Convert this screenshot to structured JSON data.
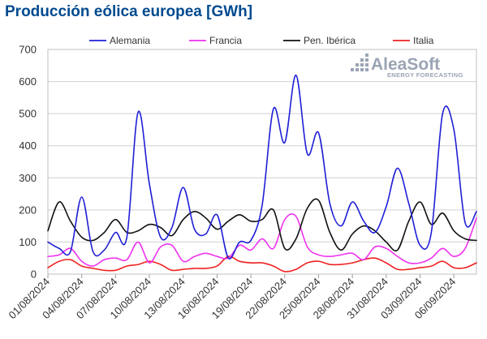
{
  "chart_data": {
    "type": "line",
    "title": "Producción eólica europea [GWh]",
    "xlabel": "",
    "ylabel": "",
    "ylim": [
      0,
      700
    ],
    "yticks": [
      "0",
      "100",
      "200",
      "300",
      "400",
      "500",
      "600",
      "700"
    ],
    "grid": true,
    "legend_position": "top",
    "x": [
      "01/08/2024",
      "02/08/2024",
      "03/08/2024",
      "04/08/2024",
      "05/08/2024",
      "06/08/2024",
      "07/08/2024",
      "08/08/2024",
      "09/08/2024",
      "10/08/2024",
      "11/08/2024",
      "12/08/2024",
      "13/08/2024",
      "14/08/2024",
      "15/08/2024",
      "16/08/2024",
      "17/08/2024",
      "18/08/2024",
      "19/08/2024",
      "20/08/2024",
      "21/08/2024",
      "22/08/2024",
      "23/08/2024",
      "24/08/2024",
      "25/08/2024",
      "26/08/2024",
      "27/08/2024",
      "28/08/2024",
      "29/08/2024",
      "30/08/2024",
      "31/08/2024",
      "01/09/2024",
      "02/09/2024",
      "03/09/2024",
      "04/09/2024",
      "05/09/2024",
      "06/09/2024",
      "07/09/2024",
      "08/09/2024"
    ],
    "x_tick_labels": [
      "01/08/2024",
      "04/08/2024",
      "07/08/2024",
      "10/08/2024",
      "13/08/2024",
      "16/08/2024",
      "19/08/2024",
      "22/08/2024",
      "25/08/2024",
      "28/08/2024",
      "31/08/2024",
      "03/09/2024",
      "06/09/2024"
    ],
    "series": [
      {
        "name": "Alemania",
        "color": "#1f1fd6",
        "values": [
          100,
          80,
          70,
          240,
          70,
          75,
          130,
          115,
          505,
          280,
          115,
          145,
          270,
          140,
          125,
          185,
          50,
          100,
          105,
          215,
          515,
          410,
          620,
          375,
          440,
          220,
          150,
          225,
          165,
          130,
          210,
          330,
          220,
          90,
          130,
          500,
          450,
          160,
          195
        ]
      },
      {
        "name": "Francia",
        "color": "#ee33ee",
        "values": [
          55,
          60,
          80,
          40,
          25,
          45,
          50,
          45,
          100,
          35,
          85,
          90,
          40,
          55,
          65,
          55,
          50,
          90,
          75,
          110,
          80,
          170,
          180,
          85,
          60,
          55,
          60,
          65,
          45,
          85,
          80,
          55,
          35,
          35,
          50,
          80,
          55,
          80,
          175
        ]
      },
      {
        "name": "Pen. Ibérica",
        "color": "#111111",
        "values": [
          135,
          225,
          165,
          115,
          105,
          130,
          170,
          130,
          135,
          155,
          145,
          120,
          170,
          195,
          175,
          140,
          165,
          185,
          165,
          170,
          200,
          80,
          110,
          205,
          230,
          130,
          75,
          125,
          150,
          135,
          100,
          75,
          165,
          225,
          155,
          190,
          135,
          110,
          105
        ]
      },
      {
        "name": "Italia",
        "color": "#ee2222",
        "values": [
          20,
          40,
          45,
          25,
          18,
          12,
          12,
          25,
          30,
          40,
          30,
          12,
          15,
          18,
          18,
          25,
          55,
          40,
          35,
          35,
          25,
          8,
          15,
          35,
          40,
          30,
          30,
          35,
          45,
          50,
          35,
          15,
          15,
          20,
          25,
          40,
          20,
          20,
          35
        ]
      }
    ]
  },
  "brand": {
    "name": "AleaSoft",
    "tagline": "ENERGY FORECASTING"
  }
}
